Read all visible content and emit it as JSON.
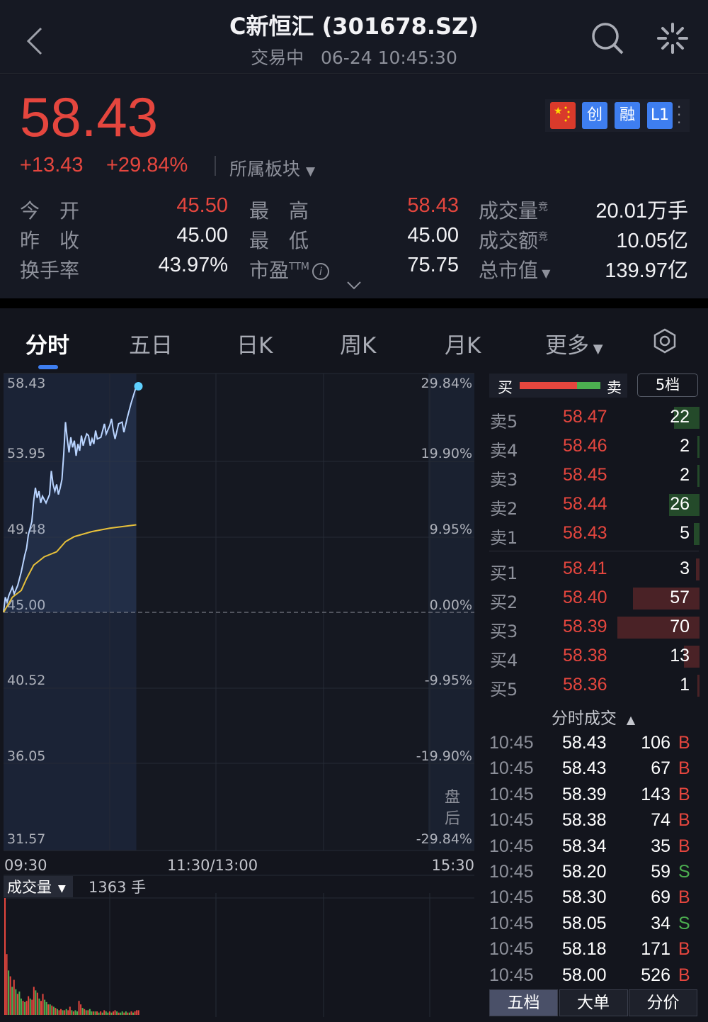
{
  "header": {
    "title": "C新恒汇 (301678.SZ)",
    "status": "交易中",
    "datetime": "06-24 10:45:30"
  },
  "quote": {
    "price": "58.43",
    "change": "+13.43",
    "change_pct": "+29.84%",
    "sector_label": "所属板块",
    "badges": [
      "创",
      "融",
      "L1"
    ],
    "stats": [
      {
        "label": "今　开",
        "value": "45.50",
        "red": true
      },
      {
        "label": "最　高",
        "value": "58.43",
        "red": true
      },
      {
        "label": "成交量",
        "sup": "竞",
        "value": "20.01万手"
      },
      {
        "label": "昨　收",
        "value": "45.00"
      },
      {
        "label": "最　低",
        "value": "45.00"
      },
      {
        "label": "成交额",
        "sup": "竞",
        "value": "10.05亿"
      },
      {
        "label": "换手率",
        "value": "43.97%"
      },
      {
        "label": "市盈",
        "sup": "TTM",
        "value": "75.75"
      },
      {
        "label": "总市值",
        "value": "139.97亿"
      }
    ]
  },
  "tabs": [
    "分时",
    "五日",
    "日K",
    "周K",
    "月K",
    "更多"
  ],
  "chart_data": {
    "type": "line",
    "title": "分时",
    "y_ticks": [
      "58.43",
      "53.95",
      "49.48",
      "45.00",
      "40.52",
      "36.05",
      "31.57"
    ],
    "pct_ticks": [
      "29.84%",
      "19.90%",
      "9.95%",
      "0.00%",
      "-9.95%",
      "-19.90%",
      "-29.84%"
    ],
    "x_ticks": [
      "09:30",
      "11:30/13:00",
      "15:30"
    ],
    "ylim": [
      31.57,
      58.43
    ],
    "prev_close": 45.0,
    "after_hours_label": "盘后",
    "price_series": {
      "name": "price",
      "x_minutes": [
        0,
        1,
        2,
        3,
        5,
        6,
        8,
        10,
        12,
        13,
        14,
        16,
        17,
        18,
        19,
        20,
        21,
        22,
        24,
        26,
        27,
        28,
        29,
        30,
        31,
        32,
        33,
        34,
        35,
        36,
        37,
        38,
        39,
        40,
        41,
        42,
        43,
        44,
        45,
        46,
        47,
        48,
        49,
        50,
        51,
        52,
        53,
        55,
        56,
        57,
        58,
        60,
        61,
        62,
        63,
        65,
        67,
        68,
        70,
        72,
        75
      ],
      "values": [
        45.0,
        45.9,
        45.6,
        46.0,
        46.5,
        46.1,
        46.6,
        47.4,
        48.4,
        48.8,
        49.6,
        50.4,
        51.6,
        52.4,
        51.8,
        52.2,
        51.5,
        51.9,
        51.5,
        52.0,
        53.4,
        52.6,
        52.2,
        52.6,
        52.0,
        52.4,
        52.9,
        54.4,
        56.3,
        55.3,
        54.5,
        55.4,
        54.8,
        55.2,
        54.3,
        55.0,
        54.6,
        55.5,
        54.9,
        55.3,
        55.6,
        55.5,
        54.9,
        55.3,
        55.0,
        55.8,
        55.3,
        55.4,
        55.8,
        56.2,
        55.6,
        56.1,
        56.5,
        55.8,
        55.3,
        56.2,
        56.3,
        55.7,
        56.6,
        57.4,
        58.43
      ]
    },
    "avg_series": {
      "name": "avg",
      "x_minutes": [
        0,
        5,
        10,
        13,
        17,
        23,
        30,
        35,
        40,
        50,
        60,
        75
      ],
      "values": [
        45.0,
        45.9,
        46.3,
        47.0,
        47.8,
        48.3,
        48.6,
        49.2,
        49.5,
        49.8,
        50.0,
        50.2
      ]
    },
    "volume": {
      "label": "成交量",
      "current": "1363 手",
      "values": [
        100,
        52,
        38,
        33,
        24,
        30,
        22,
        18,
        20,
        14,
        12,
        11,
        12,
        16,
        14,
        13,
        24,
        21,
        19,
        14,
        12,
        18,
        13,
        11,
        9,
        9,
        8,
        7,
        6,
        5,
        4,
        5,
        4,
        4,
        5,
        4,
        7,
        4,
        3,
        4,
        3,
        12,
        9,
        6,
        5,
        4,
        4,
        5,
        3,
        3,
        3,
        3,
        2,
        3,
        2,
        4,
        3,
        2,
        3,
        2,
        3,
        4,
        3,
        2,
        2,
        3,
        2,
        3,
        2,
        2,
        3,
        2,
        3,
        4,
        4
      ],
      "up": [
        1,
        1,
        0,
        1,
        0,
        1,
        0,
        1,
        0,
        0,
        1,
        0,
        1,
        1,
        0,
        1,
        1,
        0,
        1,
        0,
        1,
        1,
        0,
        0,
        1,
        0,
        1,
        0,
        1,
        0,
        1,
        1,
        0,
        1,
        0,
        1,
        1,
        0,
        1,
        0,
        0,
        1,
        1,
        0,
        1,
        0,
        1,
        0,
        0,
        1,
        0,
        1,
        0,
        1,
        0,
        1,
        0,
        0,
        1,
        0,
        1,
        1,
        0,
        1,
        0,
        0,
        1,
        0,
        1,
        0,
        1,
        0,
        1,
        1,
        1
      ]
    }
  },
  "orderbook": {
    "buy_label": "买",
    "sell_label": "卖",
    "buy_ratio": 0.71,
    "depth_label": "5档",
    "asks": [
      {
        "label": "卖5",
        "price": "58.47",
        "vol": "22",
        "n": 22
      },
      {
        "label": "卖4",
        "price": "58.46",
        "vol": "2",
        "n": 2
      },
      {
        "label": "卖3",
        "price": "58.45",
        "vol": "2",
        "n": 2
      },
      {
        "label": "卖2",
        "price": "58.44",
        "vol": "26",
        "n": 26
      },
      {
        "label": "卖1",
        "price": "58.43",
        "vol": "5",
        "n": 5
      }
    ],
    "bids": [
      {
        "label": "买1",
        "price": "58.41",
        "vol": "3",
        "n": 3
      },
      {
        "label": "买2",
        "price": "58.40",
        "vol": "57",
        "n": 57
      },
      {
        "label": "买3",
        "price": "58.39",
        "vol": "70",
        "n": 70
      },
      {
        "label": "买4",
        "price": "58.38",
        "vol": "13",
        "n": 13
      },
      {
        "label": "买5",
        "price": "58.36",
        "vol": "1",
        "n": 1
      }
    ]
  },
  "trades": {
    "title": "分时成交",
    "rows": [
      [
        "10:45",
        "58.43",
        "106",
        "B"
      ],
      [
        "10:45",
        "58.43",
        "67",
        "B"
      ],
      [
        "10:45",
        "58.39",
        "143",
        "B"
      ],
      [
        "10:45",
        "58.38",
        "74",
        "B"
      ],
      [
        "10:45",
        "58.34",
        "35",
        "B"
      ],
      [
        "10:45",
        "58.20",
        "59",
        "S"
      ],
      [
        "10:45",
        "58.30",
        "69",
        "B"
      ],
      [
        "10:45",
        "58.05",
        "34",
        "S"
      ],
      [
        "10:45",
        "58.18",
        "171",
        "B"
      ],
      [
        "10:45",
        "58.00",
        "526",
        "B"
      ]
    ]
  },
  "bottom_tabs": [
    "五档",
    "大单",
    "分价"
  ],
  "colors": {
    "red": "#e5463e",
    "green": "#4caf50",
    "bg": "#13151d",
    "price_line": "#b9d4ff",
    "avg_line": "#e8c13a"
  }
}
